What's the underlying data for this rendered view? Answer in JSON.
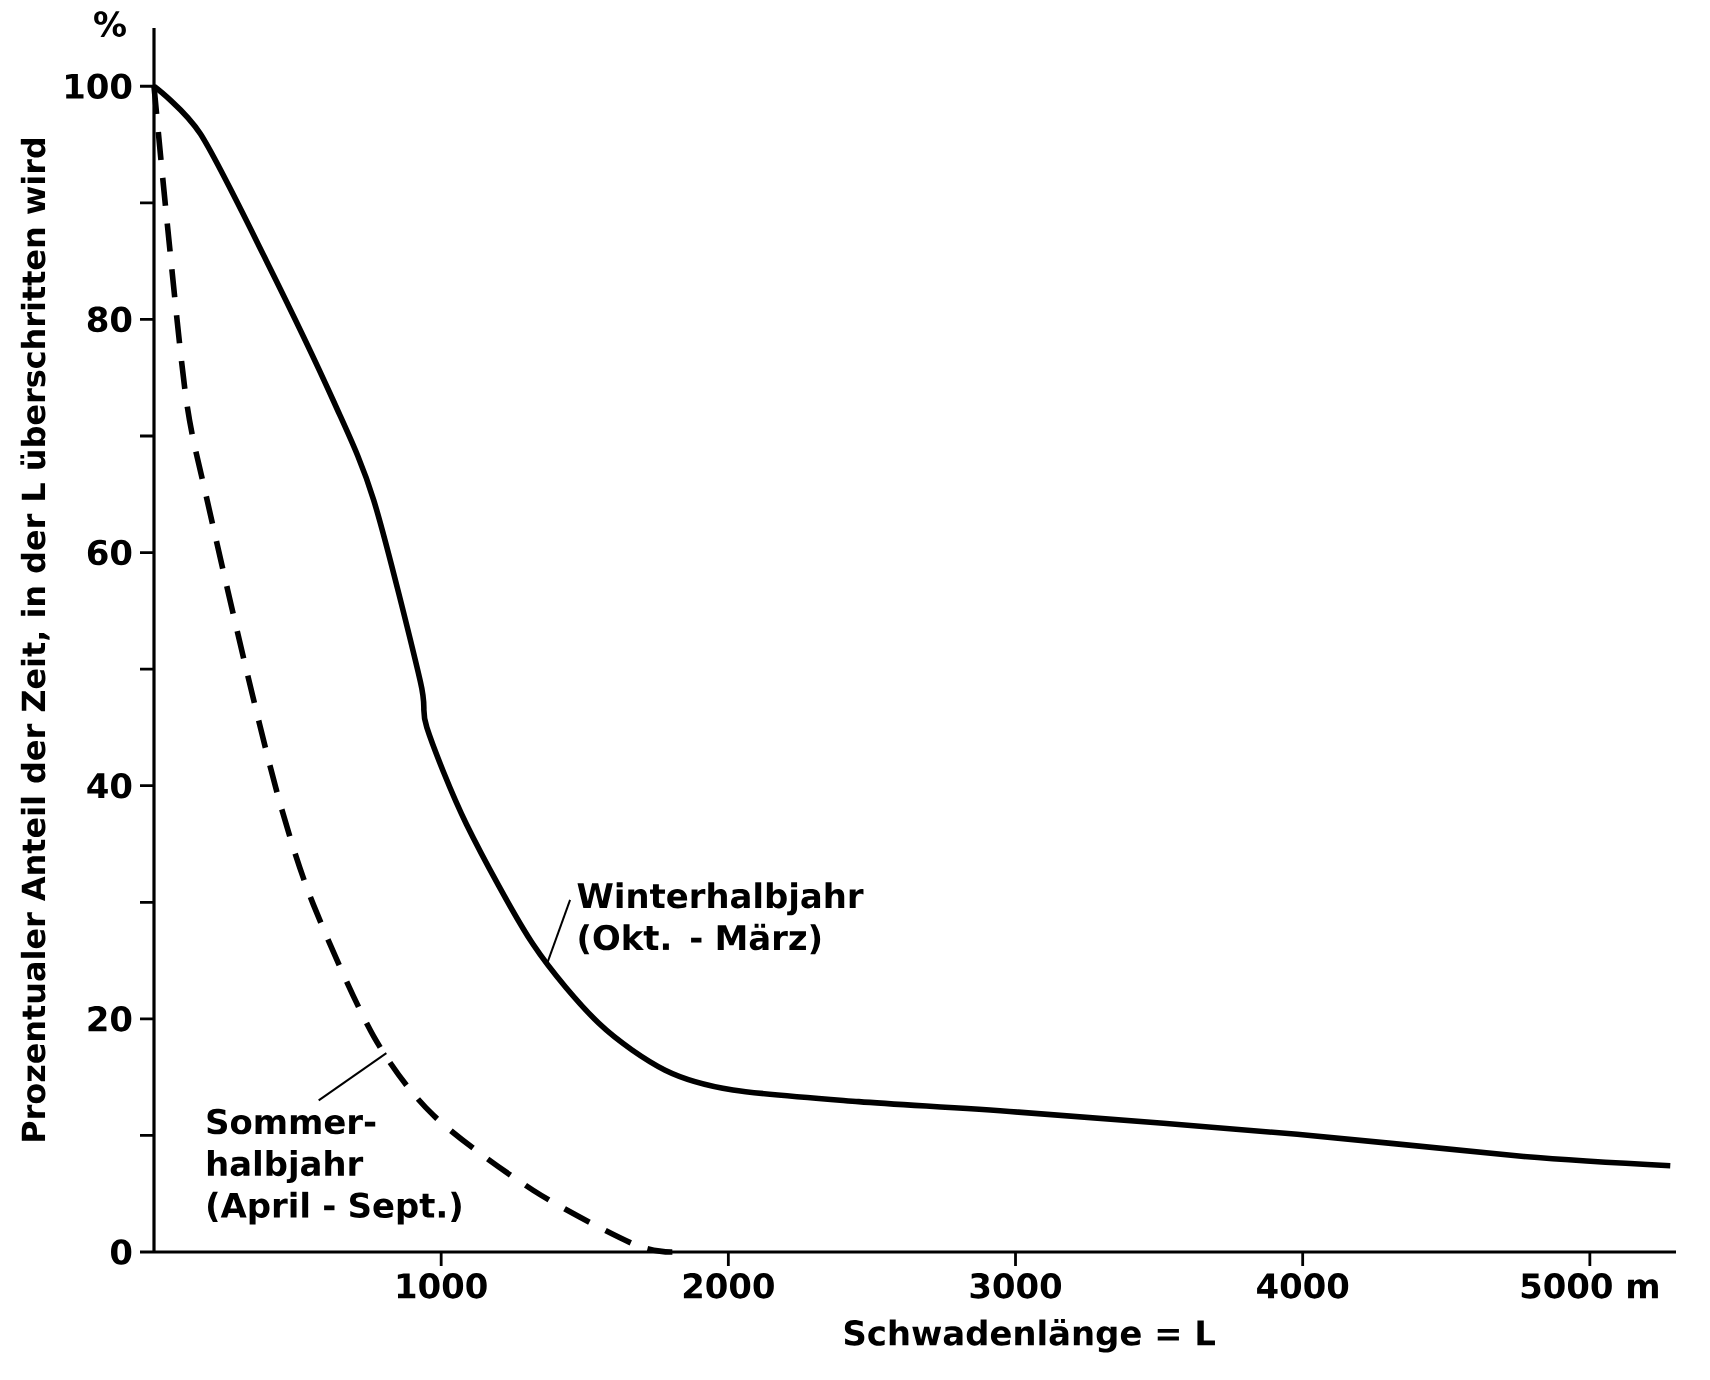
{
  "chart_data": {
    "type": "line",
    "xlabel": "Schwadenlänge = L",
    "ylabel": "Prozentualer Anteil der Zeit, in der L überschritten wird",
    "annotations": [
      "%"
    ],
    "xlim": [
      0,
      5300
    ],
    "ylim": [
      0,
      105
    ],
    "xticks": [
      1000,
      2000,
      3000,
      4000,
      {
        "value": 5000,
        "label": "5000 m"
      }
    ],
    "yticks": [
      0,
      {
        "value": 10,
        "label": null
      },
      20,
      {
        "value": 30,
        "label": null
      },
      40,
      {
        "value": 50,
        "label": null
      },
      60,
      {
        "value": 70,
        "label": null
      },
      80,
      {
        "value": 90,
        "label": null
      },
      100
    ],
    "series": [
      {
        "name": "Winterhalbjahr (Okt. - März)",
        "color": "#000000",
        "line_style": "solid",
        "x": [
          0,
          162,
          392,
          625,
          765,
          927,
          950,
          1088,
          1320,
          1550,
          1780,
          2016,
          2454,
          3010,
          3981,
          4770,
          5280
        ],
        "values": [
          100,
          95.9,
          85,
          73,
          64.5,
          49,
          45,
          36.7,
          26.4,
          19.6,
          15.6,
          13.9,
          12.9,
          12.0,
          10.1,
          8.2,
          7.4
        ]
      },
      {
        "name": "Sommer-halbjahr (April - Sept.)",
        "color": "#000000",
        "line_style": "dashed",
        "x": [
          0,
          45,
          113,
          185,
          325,
          440,
          555,
          765,
          974,
          1320,
          1668,
          1805
        ],
        "values": [
          100,
          88.5,
          73,
          64.5,
          49.6,
          38.4,
          29.8,
          18.5,
          11.7,
          5.3,
          0.7,
          0
        ]
      }
    ]
  }
}
